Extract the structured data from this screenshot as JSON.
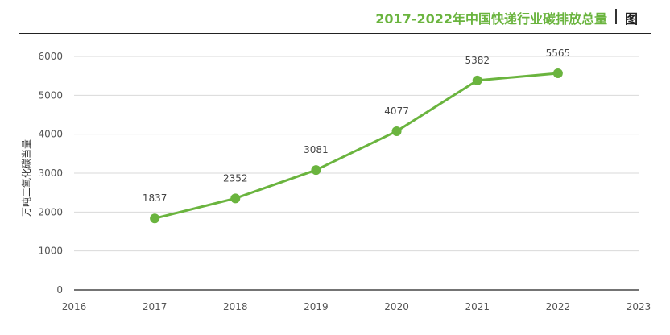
{
  "header": {
    "title": "2017-2022年中国快递行业碳排放总量",
    "tag": "图"
  },
  "colors": {
    "accent": "#6ab43e",
    "grid": "#d9d9d9",
    "axis": "#222222",
    "text": "#555555"
  },
  "chart_data": {
    "type": "line",
    "title": "2017-2022年中国快递行业碳排放总量",
    "xlabel": "",
    "ylabel": "万吨二氧化碳当量",
    "x_ticks": [
      "2016",
      "2017",
      "2018",
      "2019",
      "2020",
      "2021",
      "2022",
      "2023"
    ],
    "xlim": [
      2016,
      2023
    ],
    "y_ticks": [
      "0",
      "1000",
      "2000",
      "3000",
      "4000",
      "5000",
      "6000"
    ],
    "ylim": [
      0,
      6000
    ],
    "grid": true,
    "series": [
      {
        "x": [
          2017,
          2018,
          2019,
          2020,
          2021,
          2022
        ],
        "values": [
          1837,
          2352,
          3081,
          4077,
          5382,
          5565
        ],
        "labels": [
          "1837",
          "2352",
          "3081",
          "4077",
          "5382",
          "5565"
        ]
      }
    ]
  }
}
